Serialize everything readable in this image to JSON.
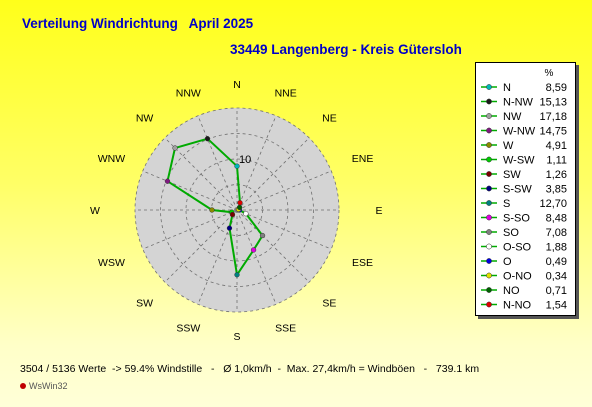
{
  "header": {
    "title": "Verteilung Windrichtung   April 2025",
    "subtitle": "33449 Langenberg - Kreis Gütersloh"
  },
  "footer": {
    "text": "3504 / 5136 Werte  -> 59.4% Windstille   -   Ø 1,0km/h  -  Max. 27,4km/h = Windböen   -   739.1 km",
    "watermark": "WsWin32"
  },
  "chart_data": {
    "type": "radar",
    "title": "Verteilung Windrichtung   April 2025",
    "subtitle": "33449 Langenberg - Kreis Gütersloh",
    "direction_labels": [
      "N",
      "NNE",
      "NE",
      "ENE",
      "E",
      "ESE",
      "SE",
      "SSE",
      "S",
      "SSW",
      "SW",
      "WSW",
      "W",
      "WNW",
      "NW",
      "NNW"
    ],
    "ring_label": "10",
    "rmax": 20,
    "rings": 4,
    "grid": true,
    "line_color": "#00aa00",
    "legend_unit": "%",
    "legend_position": "right",
    "sectors": [
      {
        "name": "N",
        "value": "8,59",
        "color": "#00b8b8"
      },
      {
        "name": "N-NW",
        "value": "15,13",
        "color": "#1a1a1a"
      },
      {
        "name": "NW",
        "value": "17,18",
        "color": "#a0a0a0"
      },
      {
        "name": "W-NW",
        "value": "14,75",
        "color": "#801a80"
      },
      {
        "name": "W",
        "value": "4,91",
        "color": "#8a8a00"
      },
      {
        "name": "W-SW",
        "value": "1,11",
        "color": "#00cc00"
      },
      {
        "name": "SW",
        "value": "1,26",
        "color": "#7a0000"
      },
      {
        "name": "S-SW",
        "value": "3,85",
        "color": "#000080"
      },
      {
        "name": "S",
        "value": "12,70",
        "color": "#008080"
      },
      {
        "name": "S-SO",
        "value": "8,48",
        "color": "#e000e0"
      },
      {
        "name": "SO",
        "value": "7,08",
        "color": "#808080"
      },
      {
        "name": "O-SO",
        "value": "1,88",
        "color": "#ffffff"
      },
      {
        "name": "O",
        "value": "0,49",
        "color": "#0000e0"
      },
      {
        "name": "O-NO",
        "value": "0,34",
        "color": "#e0e000"
      },
      {
        "name": "NO",
        "value": "0,71",
        "color": "#006000"
      },
      {
        "name": "N-NO",
        "value": "1,54",
        "color": "#e00000"
      }
    ]
  }
}
